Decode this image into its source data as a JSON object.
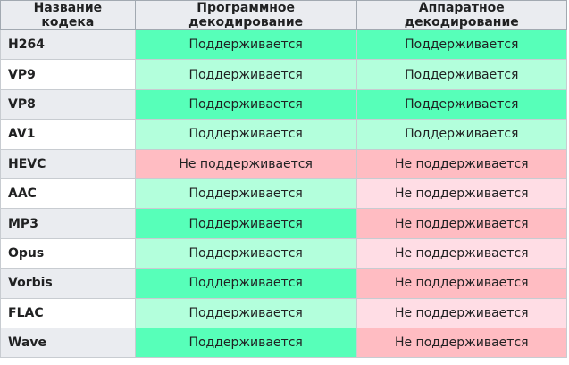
{
  "table": {
    "header": [
      "Название кодека",
      "Программное декодирование",
      "Аппаратное декодирование"
    ],
    "rows": [
      [
        "H264",
        "Поддерживается",
        "Поддерживается"
      ],
      [
        "VP9",
        "Поддерживается",
        "Поддерживается"
      ],
      [
        "VP8",
        "Поддерживается",
        "Поддерживается"
      ],
      [
        "AV1",
        "Поддерживается",
        "Поддерживается"
      ],
      [
        "HEVC",
        "Не поддерживается",
        "Не поддерживается"
      ],
      [
        "AAC",
        "Поддерживается",
        "Не поддерживается"
      ],
      [
        "MP3",
        "Поддерживается",
        "Не поддерживается"
      ],
      [
        "Opus",
        "Поддерживается",
        "Не поддерживается"
      ],
      [
        "Vorbis",
        "Поддерживается",
        "Не поддерживается"
      ],
      [
        "FLAC",
        "Поддерживается",
        "Не поддерживается"
      ],
      [
        "Wave",
        "Поддерживается",
        "Не поддерживается"
      ]
    ]
  }
}
